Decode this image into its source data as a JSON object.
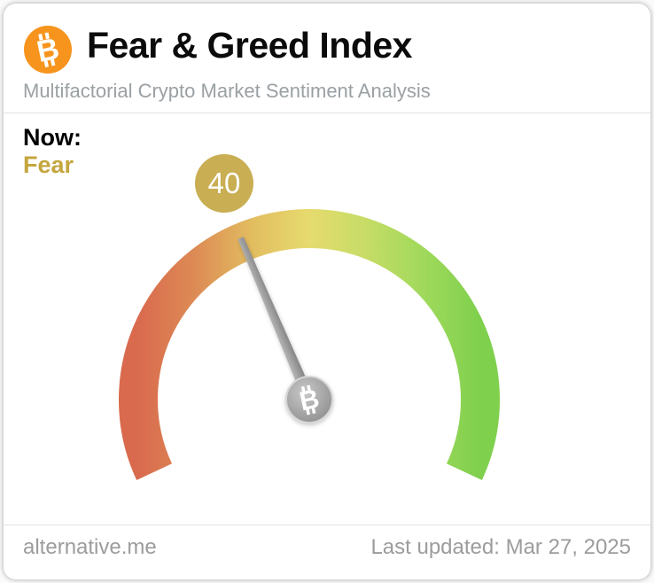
{
  "header": {
    "logo_icon": "bitcoin-icon",
    "title": "Fear & Greed Index",
    "subtitle": "Multifactorial Crypto Market Sentiment Analysis"
  },
  "now": {
    "label": "Now:",
    "classification": "Fear",
    "value": "40"
  },
  "chart_data": {
    "type": "gauge",
    "title": "Fear & Greed Index",
    "value": 40,
    "min": 0,
    "max": 100,
    "classification": "Fear",
    "needle_hub_icon": "bitcoin-icon",
    "arc_colors": [
      "#d96a4e",
      "#dd8b55",
      "#e2bd60",
      "#e6db6e",
      "#c6dc66",
      "#a0d95c",
      "#7fd04d"
    ],
    "arc_span_degrees": 230
  },
  "footer": {
    "source": "alternative.me",
    "last_updated": "Last updated: Mar 27, 2025"
  },
  "colors": {
    "accent_text": "#c5a63e",
    "badge_bg": "#c9ae53",
    "badge_text": "#ffffff",
    "bitcoin_orange": "#f7941d",
    "needle_gray": "#8e8e8e",
    "muted_text": "#9c9c9c"
  }
}
